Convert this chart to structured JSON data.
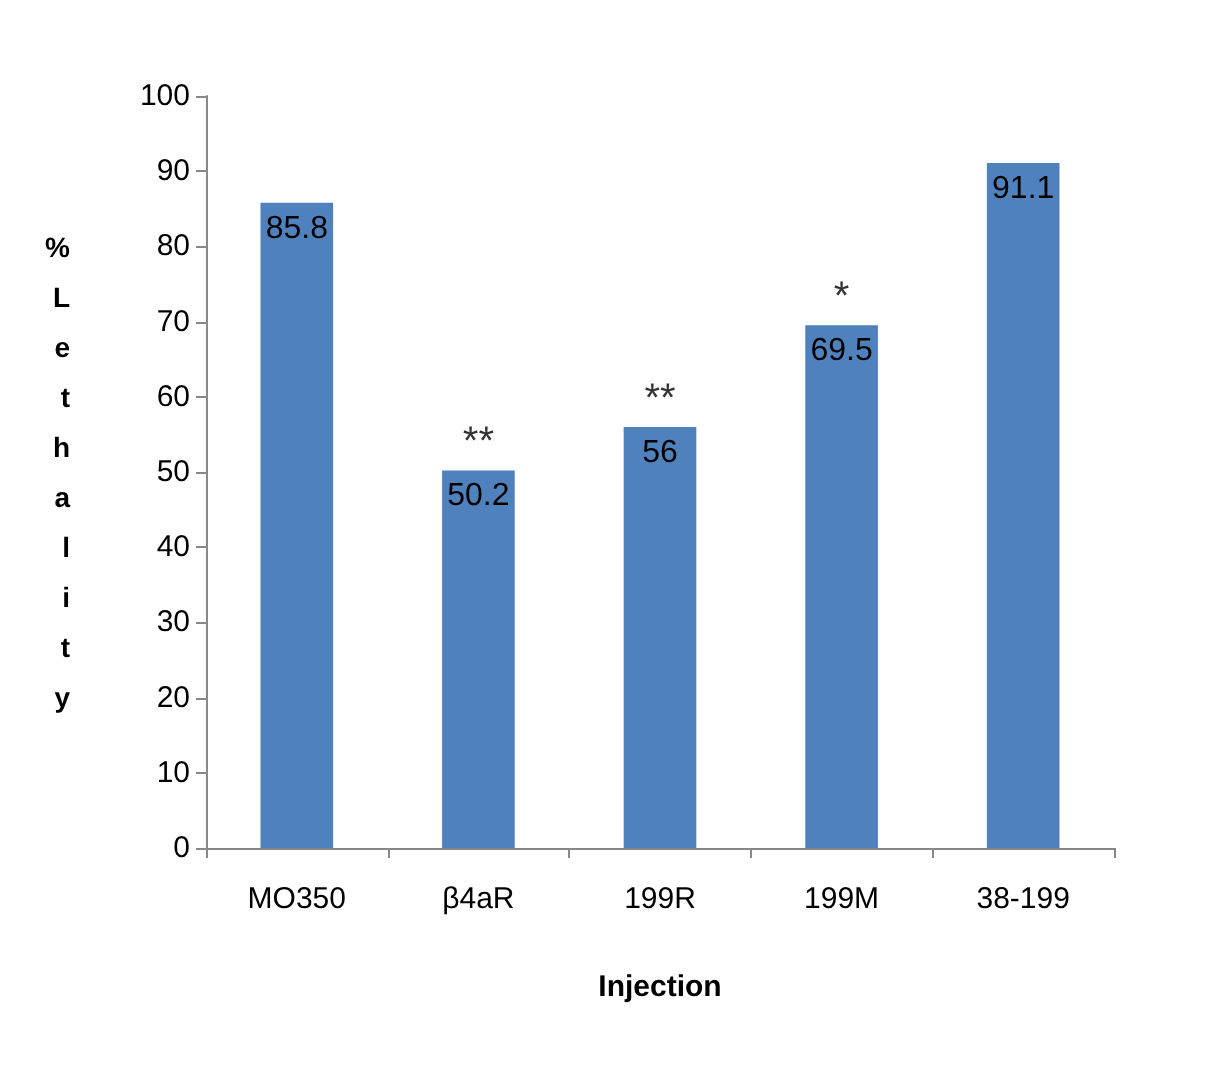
{
  "chart_data": {
    "type": "bar",
    "xlabel": "Injection",
    "ylabel": "%Lethality",
    "categories": [
      "MO350",
      "β4aR",
      "199R",
      "199M",
      "38-199"
    ],
    "values": [
      85.8,
      50.2,
      56,
      69.5,
      91.1
    ],
    "color": "#4f81bd",
    "ylim": [
      0,
      100
    ],
    "yticks": [
      0,
      10,
      20,
      30,
      40,
      50,
      60,
      70,
      80,
      90,
      100
    ],
    "grid": false,
    "data_labels": true,
    "annotations": [
      {
        "text": "**",
        "x": "β4aR",
        "y": 50.2
      },
      {
        "text": "**",
        "x": "199R",
        "y": 56
      },
      {
        "text": "*",
        "x": "199M",
        "y": 69.5
      }
    ]
  }
}
